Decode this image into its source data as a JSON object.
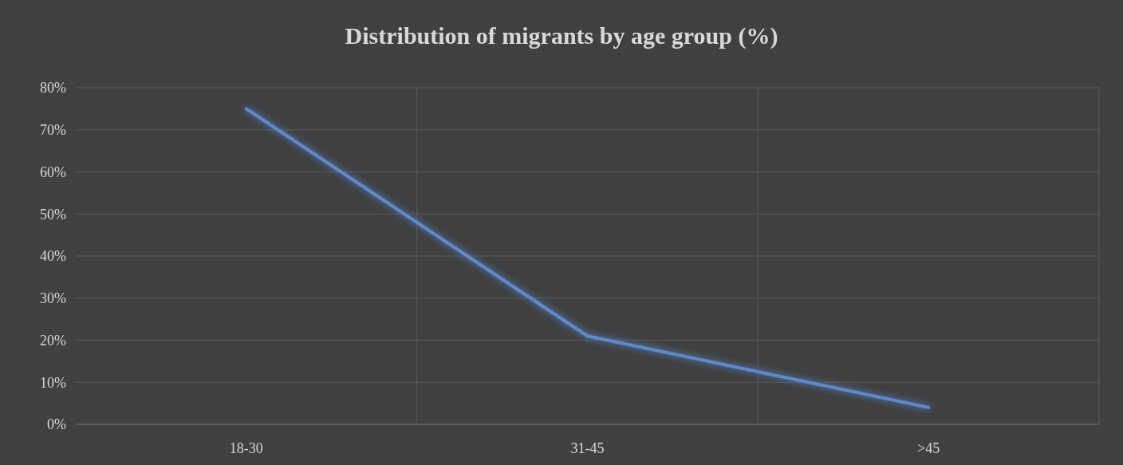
{
  "chart_data": {
    "type": "line",
    "title": "Distribution of migrants by age group (%)",
    "categories": [
      "18-30",
      "31-45",
      ">45"
    ],
    "series": [
      {
        "color": "#5b8ad0",
        "values": [
          75,
          21,
          4
        ]
      }
    ],
    "ylim": [
      0,
      80
    ],
    "yticks": [
      {
        "value": 0,
        "label": "0%"
      },
      {
        "value": 10,
        "label": "10%"
      },
      {
        "value": 20,
        "label": "20%"
      },
      {
        "value": 30,
        "label": "30%"
      },
      {
        "value": 40,
        "label": "40%"
      },
      {
        "value": 50,
        "label": "50%"
      },
      {
        "value": 60,
        "label": "60%"
      },
      {
        "value": 70,
        "label": "70%"
      },
      {
        "value": 80,
        "label": "80%"
      }
    ],
    "grid": true,
    "marker": "none",
    "line_style": "solid"
  }
}
